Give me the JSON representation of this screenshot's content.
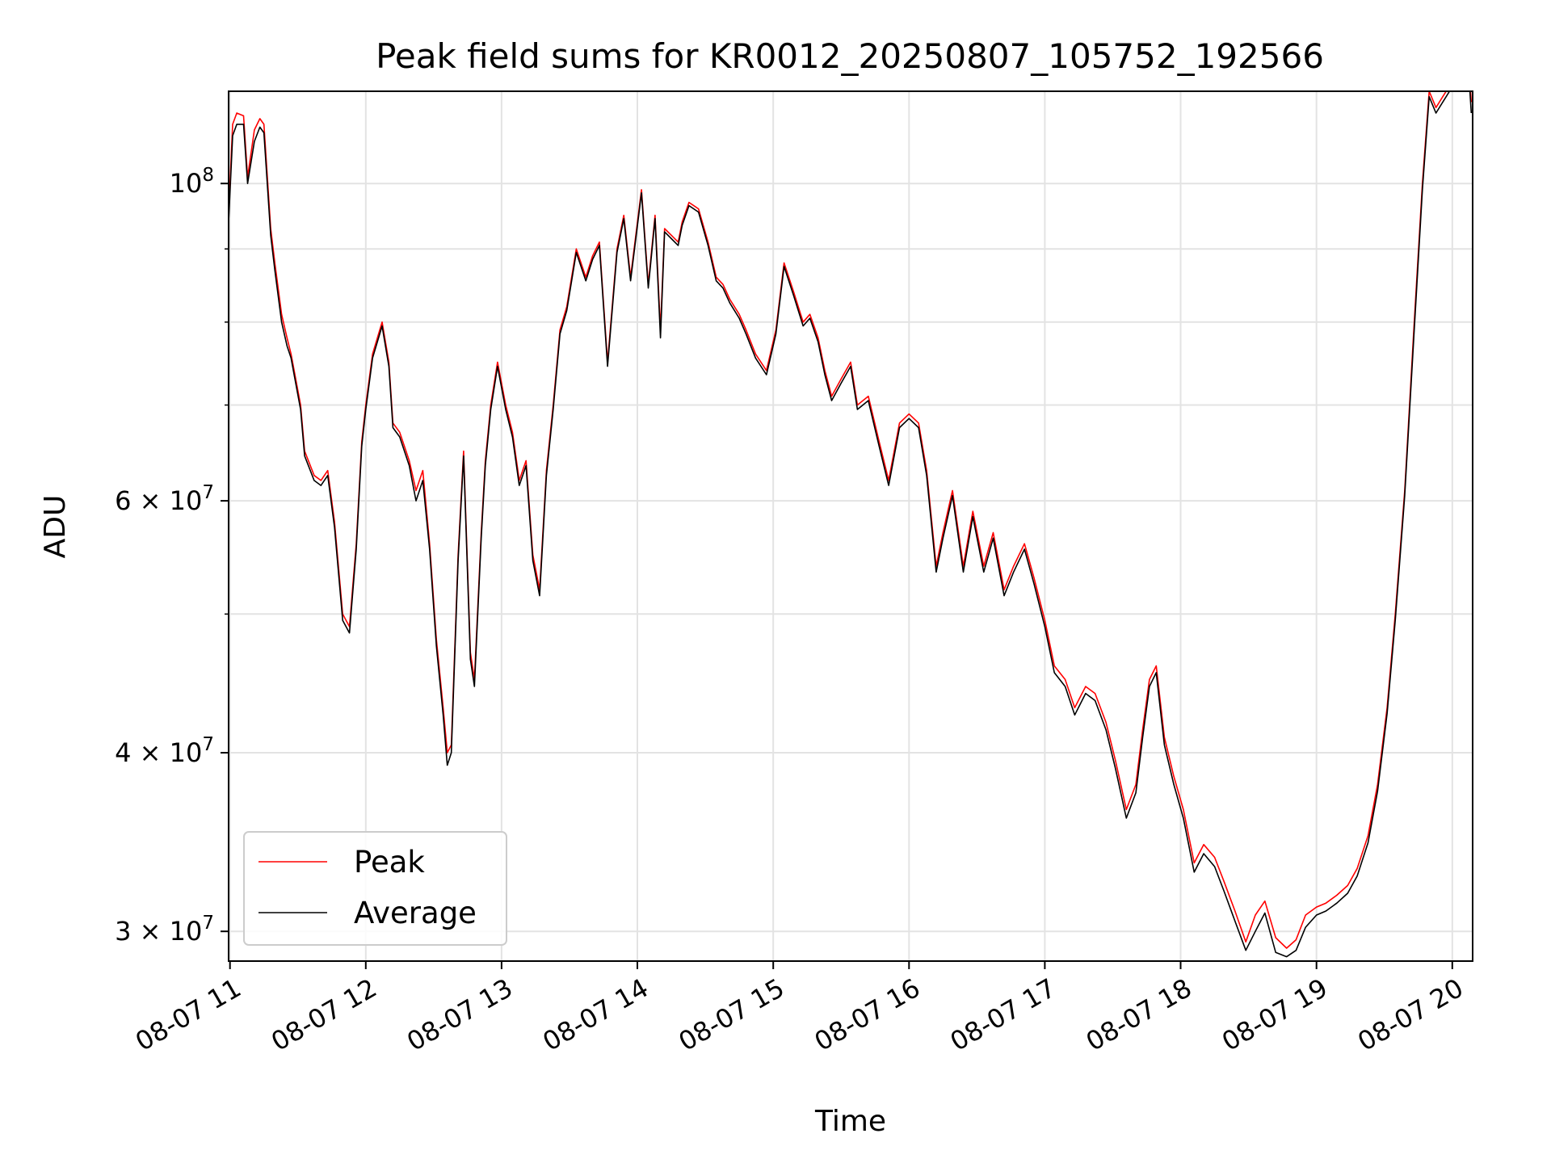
{
  "chart_data": {
    "type": "line",
    "title": "Peak field sums for KR0012_20250807_105752_192566",
    "xlabel": "Time",
    "ylabel": "ADU",
    "yscale": "log",
    "grid": true,
    "legend_position": "lower-left",
    "x_range_hours": [
      10.99,
      20.15
    ],
    "y_range": [
      28600000,
      116000000
    ],
    "x_ticks": [
      {
        "hour": 11,
        "label": "08-07 11"
      },
      {
        "hour": 12,
        "label": "08-07 12"
      },
      {
        "hour": 13,
        "label": "08-07 13"
      },
      {
        "hour": 14,
        "label": "08-07 14"
      },
      {
        "hour": 15,
        "label": "08-07 15"
      },
      {
        "hour": 16,
        "label": "08-07 16"
      },
      {
        "hour": 17,
        "label": "08-07 17"
      },
      {
        "hour": 18,
        "label": "08-07 18"
      },
      {
        "hour": 19,
        "label": "08-07 19"
      },
      {
        "hour": 20,
        "label": "08-07 20"
      }
    ],
    "y_major_ticks": [
      {
        "value": 30000000,
        "mant": "3",
        "exp": "7"
      },
      {
        "value": 40000000,
        "mant": "4",
        "exp": "7"
      },
      {
        "value": 60000000,
        "mant": "6",
        "exp": "7"
      },
      {
        "value": 100000000,
        "mant": "",
        "exp": "8"
      }
    ],
    "y_minor_grid": [
      50000000,
      70000000,
      80000000,
      90000000
    ],
    "series": [
      {
        "name": "Peak",
        "color": "#ff0000",
        "x": [
          10.99,
          11.02,
          11.05,
          11.1,
          11.13,
          11.18,
          11.22,
          11.25,
          11.3,
          11.33,
          11.38,
          11.42,
          11.45,
          11.52,
          11.55,
          11.62,
          11.67,
          11.72,
          11.77,
          11.83,
          11.88,
          11.93,
          11.97,
          12.0,
          12.05,
          12.12,
          12.17,
          12.2,
          12.25,
          12.32,
          12.37,
          12.42,
          12.47,
          12.52,
          12.57,
          12.6,
          12.63,
          12.68,
          12.72,
          12.77,
          12.8,
          12.85,
          12.88,
          12.92,
          12.97,
          13.03,
          13.08,
          13.13,
          13.18,
          13.23,
          13.28,
          13.33,
          13.38,
          13.43,
          13.48,
          13.55,
          13.62,
          13.67,
          13.72,
          13.78,
          13.85,
          13.9,
          13.95,
          14.03,
          14.08,
          14.13,
          14.17,
          14.2,
          14.25,
          14.3,
          14.33,
          14.38,
          14.45,
          14.52,
          14.58,
          14.63,
          14.68,
          14.75,
          14.8,
          14.87,
          14.95,
          15.02,
          15.08,
          15.15,
          15.22,
          15.27,
          15.33,
          15.38,
          15.43,
          15.5,
          15.57,
          15.62,
          15.7,
          15.78,
          15.85,
          15.93,
          16.0,
          16.07,
          16.13,
          16.2,
          16.25,
          16.32,
          16.4,
          16.47,
          16.55,
          16.62,
          16.7,
          16.77,
          16.85,
          16.92,
          17.0,
          17.07,
          17.15,
          17.22,
          17.3,
          17.37,
          17.45,
          17.52,
          17.6,
          17.67,
          17.72,
          17.77,
          17.82,
          17.88,
          17.95,
          18.02,
          18.1,
          18.17,
          18.25,
          18.32,
          18.4,
          18.48,
          18.55,
          18.62,
          18.7,
          18.78,
          18.85,
          18.92,
          19.0,
          19.07,
          19.15,
          19.23,
          19.3,
          19.38,
          19.45,
          19.52,
          19.58,
          19.65,
          19.72,
          19.78,
          19.83,
          19.88,
          19.93,
          19.98,
          20.03,
          20.08,
          20.12,
          20.14
        ],
        "y": [
          95000000,
          110000000,
          112000000,
          111500000,
          101000000,
          109000000,
          111000000,
          110000000,
          93000000,
          88000000,
          81000000,
          78000000,
          76000000,
          70000000,
          65000000,
          62500000,
          62000000,
          63000000,
          58000000,
          50000000,
          49000000,
          56000000,
          66000000,
          70000000,
          76000000,
          80000000,
          75000000,
          68000000,
          67000000,
          64000000,
          61000000,
          63000000,
          56000000,
          48000000,
          43000000,
          40000000,
          40500000,
          55000000,
          65000000,
          47000000,
          45000000,
          57000000,
          64000000,
          70000000,
          75000000,
          70000000,
          67000000,
          62000000,
          64000000,
          55000000,
          52000000,
          63000000,
          70000000,
          79000000,
          82000000,
          90000000,
          86000000,
          89000000,
          91000000,
          75000000,
          90000000,
          95000000,
          86000000,
          99000000,
          85000000,
          95000000,
          79000000,
          93000000,
          92000000,
          91000000,
          94000000,
          97000000,
          96000000,
          91000000,
          86000000,
          85000000,
          83000000,
          81000000,
          79000000,
          76000000,
          74000000,
          79000000,
          88000000,
          84000000,
          80000000,
          81000000,
          78000000,
          74000000,
          71000000,
          73000000,
          75000000,
          70000000,
          71000000,
          66000000,
          62000000,
          68000000,
          69000000,
          68000000,
          63000000,
          54000000,
          57000000,
          61000000,
          54000000,
          59000000,
          54000000,
          57000000,
          52000000,
          54000000,
          56000000,
          53000000,
          49500000,
          46000000,
          45000000,
          43000000,
          44500000,
          44000000,
          42000000,
          39500000,
          36500000,
          38000000,
          41500000,
          45000000,
          46000000,
          41000000,
          38500000,
          36500000,
          33500000,
          34500000,
          33800000,
          32500000,
          31000000,
          29500000,
          30800000,
          31500000,
          29700000,
          29200000,
          29600000,
          30800000,
          31200000,
          31400000,
          31800000,
          32300000,
          33200000,
          35000000,
          38000000,
          43000000,
          50000000,
          61000000,
          80000000,
          100000000,
          116000000,
          113000000,
          115000000,
          117000000,
          120000000,
          124000000,
          121000000,
          114000000
        ]
      },
      {
        "name": "Average",
        "color": "#000000",
        "x": [
          10.99,
          11.02,
          11.05,
          11.1,
          11.13,
          11.18,
          11.22,
          11.25,
          11.3,
          11.33,
          11.38,
          11.42,
          11.45,
          11.52,
          11.55,
          11.62,
          11.67,
          11.72,
          11.77,
          11.83,
          11.88,
          11.93,
          11.97,
          12.0,
          12.05,
          12.12,
          12.17,
          12.2,
          12.25,
          12.32,
          12.37,
          12.42,
          12.47,
          12.52,
          12.57,
          12.6,
          12.63,
          12.68,
          12.72,
          12.77,
          12.8,
          12.85,
          12.88,
          12.92,
          12.97,
          13.03,
          13.08,
          13.13,
          13.18,
          13.23,
          13.28,
          13.33,
          13.38,
          13.43,
          13.48,
          13.55,
          13.62,
          13.67,
          13.72,
          13.78,
          13.85,
          13.9,
          13.95,
          14.03,
          14.08,
          14.13,
          14.17,
          14.2,
          14.25,
          14.3,
          14.33,
          14.38,
          14.45,
          14.52,
          14.58,
          14.63,
          14.68,
          14.75,
          14.8,
          14.87,
          14.95,
          15.02,
          15.08,
          15.15,
          15.22,
          15.27,
          15.33,
          15.38,
          15.43,
          15.5,
          15.57,
          15.62,
          15.7,
          15.78,
          15.85,
          15.93,
          16.0,
          16.07,
          16.13,
          16.2,
          16.25,
          16.32,
          16.4,
          16.47,
          16.55,
          16.62,
          16.7,
          16.77,
          16.85,
          16.92,
          17.0,
          17.07,
          17.15,
          17.22,
          17.3,
          17.37,
          17.45,
          17.52,
          17.6,
          17.67,
          17.72,
          17.77,
          17.82,
          17.88,
          17.95,
          18.02,
          18.1,
          18.17,
          18.25,
          18.32,
          18.4,
          18.48,
          18.55,
          18.62,
          18.7,
          18.78,
          18.85,
          18.92,
          19.0,
          19.07,
          19.15,
          19.23,
          19.3,
          19.38,
          19.45,
          19.52,
          19.58,
          19.65,
          19.72,
          19.78,
          19.83,
          19.88,
          19.93,
          19.98,
          20.03,
          20.08,
          20.12,
          20.14
        ],
        "y": [
          94000000,
          108000000,
          110000000,
          110000000,
          100000000,
          107000000,
          109500000,
          108500000,
          92000000,
          87000000,
          80000000,
          77000000,
          75500000,
          69500000,
          64500000,
          62000000,
          61500000,
          62500000,
          57500000,
          49500000,
          48500000,
          55500000,
          65500000,
          69500000,
          75500000,
          79500000,
          74500000,
          67500000,
          66500000,
          63500000,
          60000000,
          62000000,
          55500000,
          47500000,
          42500000,
          39200000,
          40000000,
          54500000,
          64500000,
          46500000,
          44500000,
          56500000,
          63500000,
          69500000,
          74500000,
          69500000,
          66500000,
          61500000,
          63500000,
          54500000,
          51500000,
          62500000,
          69500000,
          78500000,
          81500000,
          89500000,
          85500000,
          88500000,
          90500000,
          74500000,
          89500000,
          94500000,
          85500000,
          98500000,
          84500000,
          94500000,
          78000000,
          92500000,
          91500000,
          90500000,
          93500000,
          96500000,
          95500000,
          90500000,
          85500000,
          84500000,
          82500000,
          80500000,
          78500000,
          75500000,
          73500000,
          78500000,
          87500000,
          83500000,
          79500000,
          80500000,
          77500000,
          73500000,
          70500000,
          72500000,
          74500000,
          69500000,
          70500000,
          65500000,
          61500000,
          67500000,
          68500000,
          67500000,
          62500000,
          53500000,
          56500000,
          60500000,
          53500000,
          58500000,
          53500000,
          56500000,
          51500000,
          53500000,
          55500000,
          52500000,
          49000000,
          45500000,
          44500000,
          42500000,
          44000000,
          43500000,
          41500000,
          39000000,
          36000000,
          37500000,
          41000000,
          44500000,
          45500000,
          40500000,
          38000000,
          36000000,
          33000000,
          34000000,
          33300000,
          32000000,
          30500000,
          29100000,
          30000000,
          30900000,
          29000000,
          28800000,
          29100000,
          30200000,
          30800000,
          31000000,
          31400000,
          31900000,
          32800000,
          34600000,
          37600000,
          42600000,
          49500000,
          60500000,
          79000000,
          99000000,
          115000000,
          112000000,
          114000000,
          116000000,
          119000000,
          123000000,
          120000000,
          112000000
        ]
      }
    ]
  }
}
